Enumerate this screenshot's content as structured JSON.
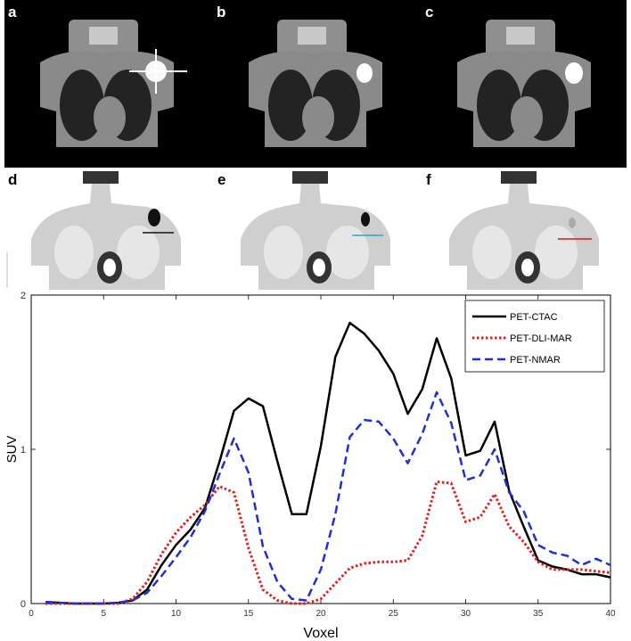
{
  "panels": {
    "ct": [
      {
        "letter": "a"
      },
      {
        "letter": "b"
      },
      {
        "letter": "c"
      }
    ],
    "pet": [
      {
        "letter": "d",
        "profile_color": "#111111"
      },
      {
        "letter": "e",
        "profile_color": "#27a7d8"
      },
      {
        "letter": "f",
        "profile_color": "#d91a1a"
      }
    ]
  },
  "chart_data": {
    "type": "line",
    "xlabel": "Voxel",
    "ylabel": "SUV",
    "xlim": [
      0,
      40
    ],
    "ylim": [
      0,
      2
    ],
    "xticks": [
      0,
      5,
      10,
      15,
      20,
      25,
      30,
      35,
      40
    ],
    "yticks": [
      0,
      1,
      2
    ],
    "grid": false,
    "legend_position": "top-right",
    "x": [
      1,
      2,
      3,
      4,
      5,
      6,
      7,
      8,
      9,
      10,
      11,
      12,
      13,
      14,
      15,
      16,
      17,
      18,
      19,
      20,
      21,
      22,
      23,
      24,
      25,
      26,
      27,
      28,
      29,
      30,
      31,
      32,
      33,
      34,
      35,
      36,
      37,
      38,
      39,
      40
    ],
    "series": [
      {
        "name": "PET-CTAC",
        "color": "#000000",
        "dash": "solid",
        "values": [
          0.01,
          0.005,
          0,
          0,
          0,
          0.005,
          0.02,
          0.09,
          0.25,
          0.38,
          0.48,
          0.62,
          0.92,
          1.25,
          1.33,
          1.28,
          0.92,
          0.58,
          0.58,
          1.02,
          1.6,
          1.82,
          1.75,
          1.64,
          1.49,
          1.23,
          1.39,
          1.72,
          1.46,
          0.96,
          0.99,
          1.18,
          0.73,
          0.5,
          0.28,
          0.24,
          0.22,
          0.19,
          0.19,
          0.17
        ]
      },
      {
        "name": "PET-DLI-MAR",
        "color": "#e0201e",
        "dash": "dotted",
        "values": [
          0,
          0,
          0,
          0,
          0,
          0,
          0.03,
          0.14,
          0.32,
          0.46,
          0.56,
          0.64,
          0.76,
          0.72,
          0.36,
          0.09,
          0.02,
          0,
          0,
          0.03,
          0.13,
          0.23,
          0.26,
          0.27,
          0.27,
          0.28,
          0.44,
          0.79,
          0.78,
          0.53,
          0.56,
          0.71,
          0.5,
          0.4,
          0.27,
          0.22,
          0.22,
          0.22,
          0.21,
          0.2
        ]
      },
      {
        "name": "PET-NMAR",
        "color": "#1f2fd6",
        "dash": "dashed",
        "values": [
          0.01,
          0.005,
          0,
          0,
          0,
          0.005,
          0.02,
          0.07,
          0.18,
          0.3,
          0.43,
          0.6,
          0.84,
          1.07,
          0.85,
          0.37,
          0.14,
          0.03,
          0.02,
          0.22,
          0.58,
          1.08,
          1.19,
          1.18,
          1.07,
          0.91,
          1.1,
          1.37,
          1.17,
          0.8,
          0.83,
          1.0,
          0.72,
          0.6,
          0.38,
          0.33,
          0.31,
          0.25,
          0.29,
          0.25
        ]
      }
    ]
  }
}
